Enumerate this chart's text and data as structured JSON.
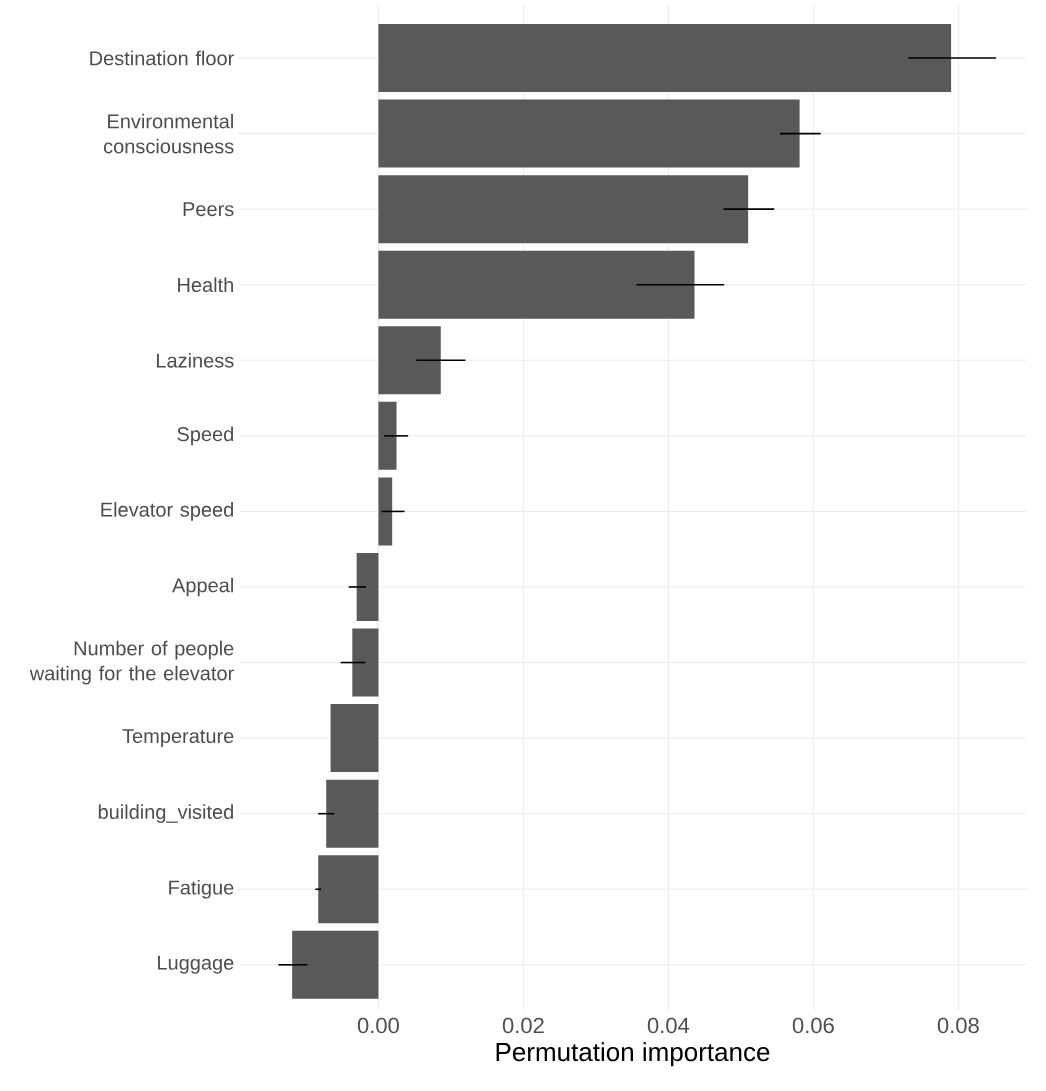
{
  "chart_data": {
    "type": "bar",
    "orientation": "horizontal",
    "xlabel": "Permutation importance",
    "categories": [
      "Destination floor",
      "Environmental consciousness",
      "Peers",
      "Health",
      "Laziness",
      "Speed",
      "Elevator speed",
      "Appeal",
      "Number of people waiting for the elevator",
      "Temperature",
      "building_visited",
      "Fatigue",
      "Luggage"
    ],
    "values": [
      0.079,
      0.0581,
      0.051,
      0.0436,
      0.0086,
      0.0025,
      0.0019,
      -0.003,
      -0.0036,
      -0.0066,
      -0.0072,
      -0.0083,
      -0.0119
    ],
    "errors": [
      [
        0.0731,
        0.0852
      ],
      [
        0.0554,
        0.061
      ],
      [
        0.0476,
        0.0546
      ],
      [
        0.0356,
        0.0477
      ],
      [
        0.0052,
        0.012
      ],
      [
        0.0008,
        0.0041
      ],
      [
        0.0004,
        0.0036
      ],
      [
        -0.0041,
        -0.0017
      ],
      [
        -0.0052,
        -0.0018
      ],
      null,
      [
        -0.0083,
        -0.0061
      ],
      [
        -0.0087,
        -0.0079
      ],
      [
        -0.0138,
        -0.0098
      ]
    ],
    "color": "#595959",
    "xlim": [
      -0.0193,
      0.0894
    ],
    "xticks": [
      {
        "value": 0,
        "label": "0.00"
      },
      {
        "value": 0.02,
        "label": "0.02"
      },
      {
        "value": 0.04,
        "label": "0.04"
      },
      {
        "value": 0.06,
        "label": "0.06"
      },
      {
        "value": 0.08,
        "label": "0.08"
      }
    ],
    "grid": true
  }
}
